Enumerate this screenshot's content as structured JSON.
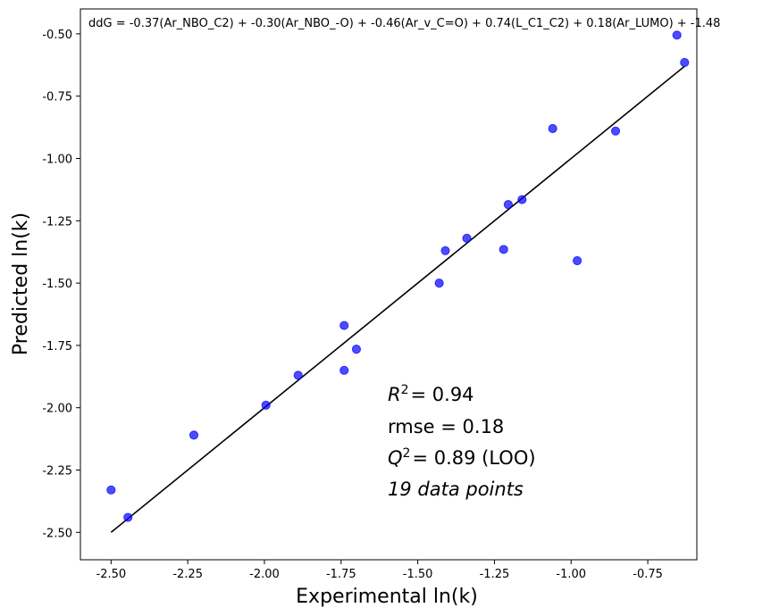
{
  "chart_data": {
    "type": "scatter",
    "title": "",
    "xlabel": "Experimental ln(k)",
    "ylabel": "Predicted ln(k)",
    "xlim": [
      -2.6,
      -0.59
    ],
    "ylim": [
      -2.61,
      -0.4
    ],
    "x_ticks": [
      -2.5,
      -2.25,
      -2.0,
      -1.75,
      -1.5,
      -1.25,
      -1.0,
      -0.75
    ],
    "x_tick_labels": [
      "-2.50",
      "-2.25",
      "-2.00",
      "-1.75",
      "-1.50",
      "-1.25",
      "-1.00",
      "-0.75"
    ],
    "y_ticks": [
      -0.5,
      -0.75,
      -1.0,
      -1.25,
      -1.5,
      -1.75,
      -2.0,
      -2.25,
      -2.5
    ],
    "y_tick_labels": [
      "-0.50",
      "-0.75",
      "-1.00",
      "-1.25",
      "-1.50",
      "-1.75",
      "-2.00",
      "-2.25",
      "-2.50"
    ],
    "grid": false,
    "point_color": "#0000ff",
    "line_color": "#000000",
    "points": [
      {
        "x": -2.5,
        "y": -2.33
      },
      {
        "x": -2.445,
        "y": -2.44
      },
      {
        "x": -2.23,
        "y": -2.11
      },
      {
        "x": -1.995,
        "y": -1.99
      },
      {
        "x": -1.89,
        "y": -1.87
      },
      {
        "x": -1.74,
        "y": -1.67
      },
      {
        "x": -1.74,
        "y": -1.85
      },
      {
        "x": -1.7,
        "y": -1.765
      },
      {
        "x": -1.43,
        "y": -1.5
      },
      {
        "x": -1.41,
        "y": -1.37
      },
      {
        "x": -1.34,
        "y": -1.32
      },
      {
        "x": -1.22,
        "y": -1.365
      },
      {
        "x": -1.205,
        "y": -1.185
      },
      {
        "x": -1.16,
        "y": -1.165
      },
      {
        "x": -1.06,
        "y": -0.88
      },
      {
        "x": -0.98,
        "y": -1.41
      },
      {
        "x": -0.855,
        "y": -0.89
      },
      {
        "x": -0.655,
        "y": -0.505
      },
      {
        "x": -0.63,
        "y": -0.615
      }
    ],
    "fit_line": {
      "x": [
        -2.5,
        -0.63
      ],
      "y": [
        -2.5,
        -0.63
      ]
    },
    "equation": "ddG = -0.37(Ar_NBO_C2) + -0.30(Ar_NBO_-O) + -0.46(Ar_v_C=O) + 0.74(L_C1_C2) + 0.18(Ar_LUMO) + -1.48",
    "stats": {
      "r2_value": "= 0.94",
      "rmse": "rmse = 0.18",
      "q2_value": "= 0.89 (LOO)",
      "n_points": "19 data points"
    }
  }
}
